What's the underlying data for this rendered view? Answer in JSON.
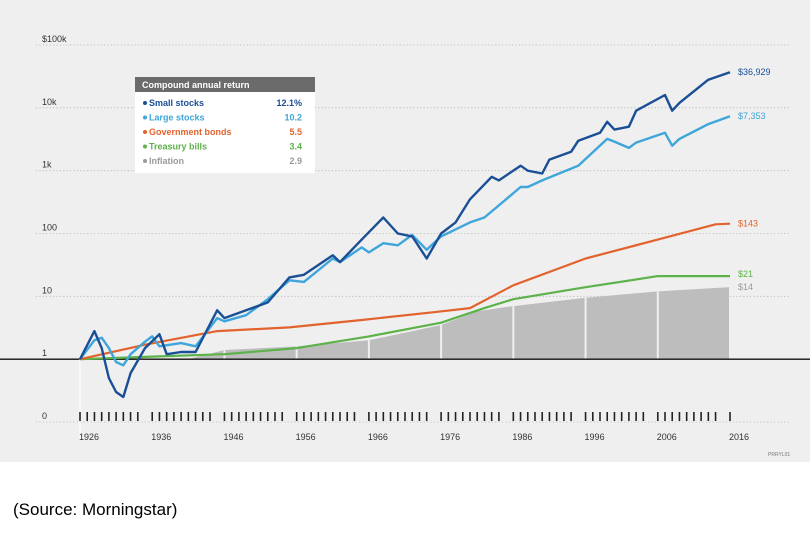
{
  "chart_data": {
    "type": "line",
    "title": "",
    "xlabel": "",
    "ylabel": "",
    "y_scale": "log",
    "ylim": [
      0.1,
      100000
    ],
    "xlim": [
      1926,
      2016
    ],
    "grid": "horizontal dotted",
    "x_tick_labels": [
      "1926",
      "1936",
      "1946",
      "1956",
      "1966",
      "1976",
      "1986",
      "1996",
      "2006",
      "2016"
    ],
    "y_tick_labels": [
      "$100k",
      "10k",
      "1k",
      "100",
      "10",
      "1",
      "0"
    ],
    "legend": {
      "title": "Compound annual return",
      "placement": "top-left",
      "entries": [
        {
          "label": "Small stocks",
          "value": "12.1%",
          "color": "#1a4f96"
        },
        {
          "label": "Large stocks",
          "value": "10.2",
          "color": "#3ea6da"
        },
        {
          "label": "Government bonds",
          "value": "5.5",
          "color": "#e2632e"
        },
        {
          "label": "Treasury bills",
          "value": "3.4",
          "color": "#5db249"
        },
        {
          "label": "Inflation",
          "value": "2.9",
          "color": "#9a9a9a"
        }
      ]
    },
    "series": [
      {
        "name": "Small stocks",
        "color": "#1a4f96",
        "end_label": "$36,929",
        "x": [
          1926,
          1928,
          1929,
          1930,
          1931,
          1932,
          1933,
          1935,
          1937,
          1938,
          1940,
          1942,
          1945,
          1946,
          1949,
          1952,
          1955,
          1957,
          1961,
          1962,
          1965,
          1968,
          1970,
          1972,
          1974,
          1976,
          1978,
          1980,
          1983,
          1984,
          1987,
          1988,
          1990,
          1991,
          1994,
          1995,
          1998,
          1999,
          2000,
          2002,
          2003,
          2007,
          2008,
          2009,
          2013,
          2016
        ],
        "y": [
          1,
          2.8,
          1.5,
          0.5,
          0.3,
          0.25,
          0.6,
          1.5,
          2.5,
          1.2,
          1.3,
          1.3,
          6,
          4.5,
          6,
          8,
          20,
          22,
          45,
          35,
          80,
          180,
          100,
          90,
          40,
          100,
          150,
          350,
          800,
          700,
          1200,
          1000,
          900,
          1500,
          2000,
          3000,
          4000,
          6000,
          4500,
          5000,
          9000,
          16000,
          9000,
          12000,
          28000,
          36929
        ]
      },
      {
        "name": "Large stocks",
        "color": "#3ea6da",
        "end_label": "$7,353",
        "x": [
          1926,
          1928,
          1929,
          1930,
          1931,
          1932,
          1933,
          1935,
          1936,
          1937,
          1940,
          1942,
          1945,
          1946,
          1949,
          1952,
          1955,
          1957,
          1961,
          1962,
          1965,
          1966,
          1968,
          1970,
          1972,
          1974,
          1976,
          1980,
          1982,
          1985,
          1987,
          1988,
          1990,
          1995,
          1999,
          2000,
          2002,
          2003,
          2007,
          2008,
          2009,
          2013,
          2016
        ],
        "y": [
          1,
          2,
          2.2,
          1.5,
          0.9,
          0.8,
          1.2,
          1.9,
          2.3,
          1.6,
          1.8,
          1.6,
          4.5,
          4,
          5,
          9,
          18,
          17,
          40,
          35,
          60,
          50,
          70,
          65,
          95,
          55,
          90,
          150,
          180,
          350,
          550,
          550,
          700,
          1200,
          3200,
          2900,
          2300,
          2800,
          4000,
          2500,
          3200,
          5500,
          7353
        ]
      },
      {
        "name": "Government bonds",
        "color": "#e2632e",
        "end_label": "$143",
        "x": [
          1926,
          1935,
          1945,
          1955,
          1965,
          1975,
          1980,
          1986,
          1996,
          2006,
          2014,
          2016
        ],
        "y": [
          1,
          1.7,
          2.8,
          3.2,
          4.2,
          5.6,
          6.5,
          15,
          40,
          80,
          140,
          143
        ]
      },
      {
        "name": "Treasury bills",
        "color": "#5db249",
        "end_label": "$21",
        "x": [
          1926,
          1936,
          1946,
          1956,
          1966,
          1976,
          1982,
          1986,
          1996,
          2006,
          2016
        ],
        "y": [
          1,
          1.1,
          1.2,
          1.5,
          2.3,
          3.8,
          6.5,
          9,
          14,
          21,
          21
        ]
      },
      {
        "name": "Inflation",
        "color": "#9a9a9a",
        "end_label": "$14",
        "x": [
          1926,
          1932,
          1941,
          1946,
          1956,
          1966,
          1976,
          1981,
          1986,
          1996,
          2006,
          2016
        ],
        "y": [
          1,
          0.75,
          0.95,
          1.4,
          1.6,
          2,
          3.5,
          5.8,
          7,
          9.5,
          12,
          14
        ]
      }
    ]
  },
  "figure_code": "PRRYL01",
  "source_note": "(Source: Morningstar)"
}
